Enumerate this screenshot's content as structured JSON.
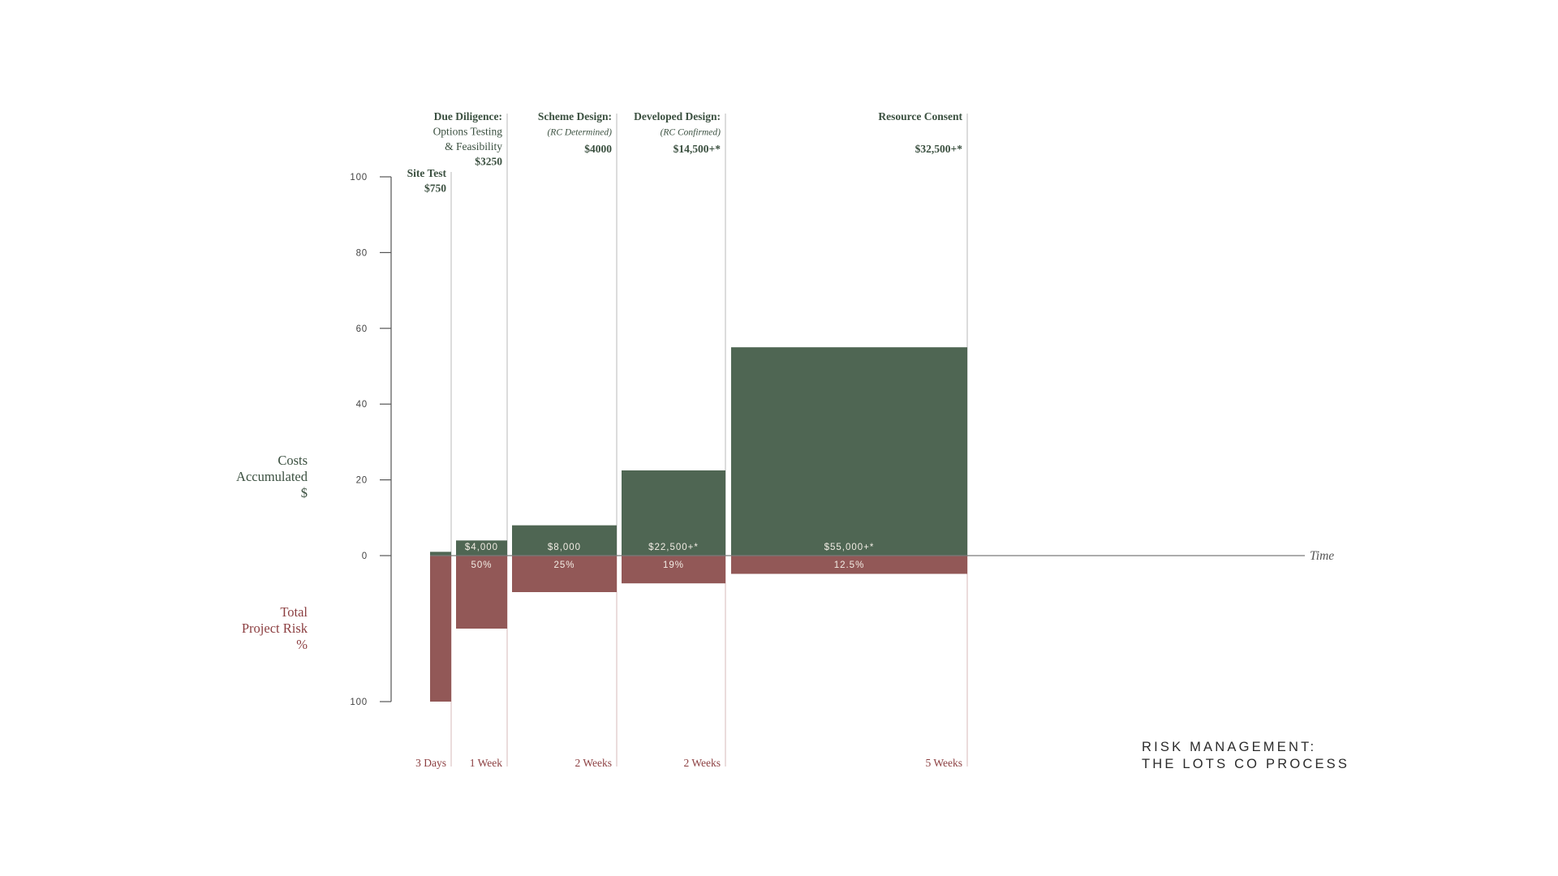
{
  "colors": {
    "cost": "#4f6653",
    "risk": "#925857",
    "cost_text": "#3b5040",
    "risk_text": "#8c3f41",
    "divider": "#b9b9b9",
    "axis": "#555555"
  },
  "caption": {
    "line1": "RISK MANAGEMENT:",
    "line2": "THE LOTS CO PROCESS"
  },
  "chart_data": {
    "type": "bar",
    "title": "RISK MANAGEMENT: THE LOTS CO PROCESS",
    "xlabel": "Time",
    "ylabel_top": [
      "Costs",
      "Accumulated",
      "$"
    ],
    "ylabel_bottom": [
      "Total",
      "Project Risk",
      "%"
    ],
    "yticks_top": [
      "100",
      "80",
      "60",
      "40",
      "20",
      "0"
    ],
    "ytick_values_top": [
      100,
      80,
      60,
      40,
      20,
      0
    ],
    "ytick_bottom": "100",
    "ylim_cost": [
      0,
      100
    ],
    "ylim_risk": [
      0,
      100
    ],
    "grid": false,
    "stages": [
      {
        "name_lines": [
          "Site Test"
        ],
        "price": "$750",
        "duration": "3 Days",
        "cost_value": 1,
        "cost_label": "",
        "risk_value": 100,
        "risk_label": ""
      },
      {
        "name_lines": [
          "Due Diligence:",
          "Options Testing",
          "& Feasibility"
        ],
        "price": "$3250",
        "duration": "1 Week",
        "cost_value": 4,
        "cost_label": "$4,000",
        "risk_value": 50,
        "risk_label": "50%"
      },
      {
        "name_lines": [
          "Scheme Design:",
          "(RC Determined)"
        ],
        "price": "$4000",
        "duration": "2 Weeks",
        "cost_value": 8,
        "cost_label": "$8,000",
        "risk_value": 25,
        "risk_label": "25%"
      },
      {
        "name_lines": [
          "Developed Design:",
          "(RC Confirmed)"
        ],
        "price": "$14,500+*",
        "duration": "2 Weeks",
        "cost_value": 22.5,
        "cost_label": "$22,500+*",
        "risk_value": 19,
        "risk_label": "19%"
      },
      {
        "name_lines": [
          "Resource Consent"
        ],
        "price": "$32,500+*",
        "duration": "5 Weeks",
        "cost_value": 55,
        "cost_label": "$55,000+*",
        "risk_value": 12.5,
        "risk_label": "12.5%"
      }
    ]
  }
}
